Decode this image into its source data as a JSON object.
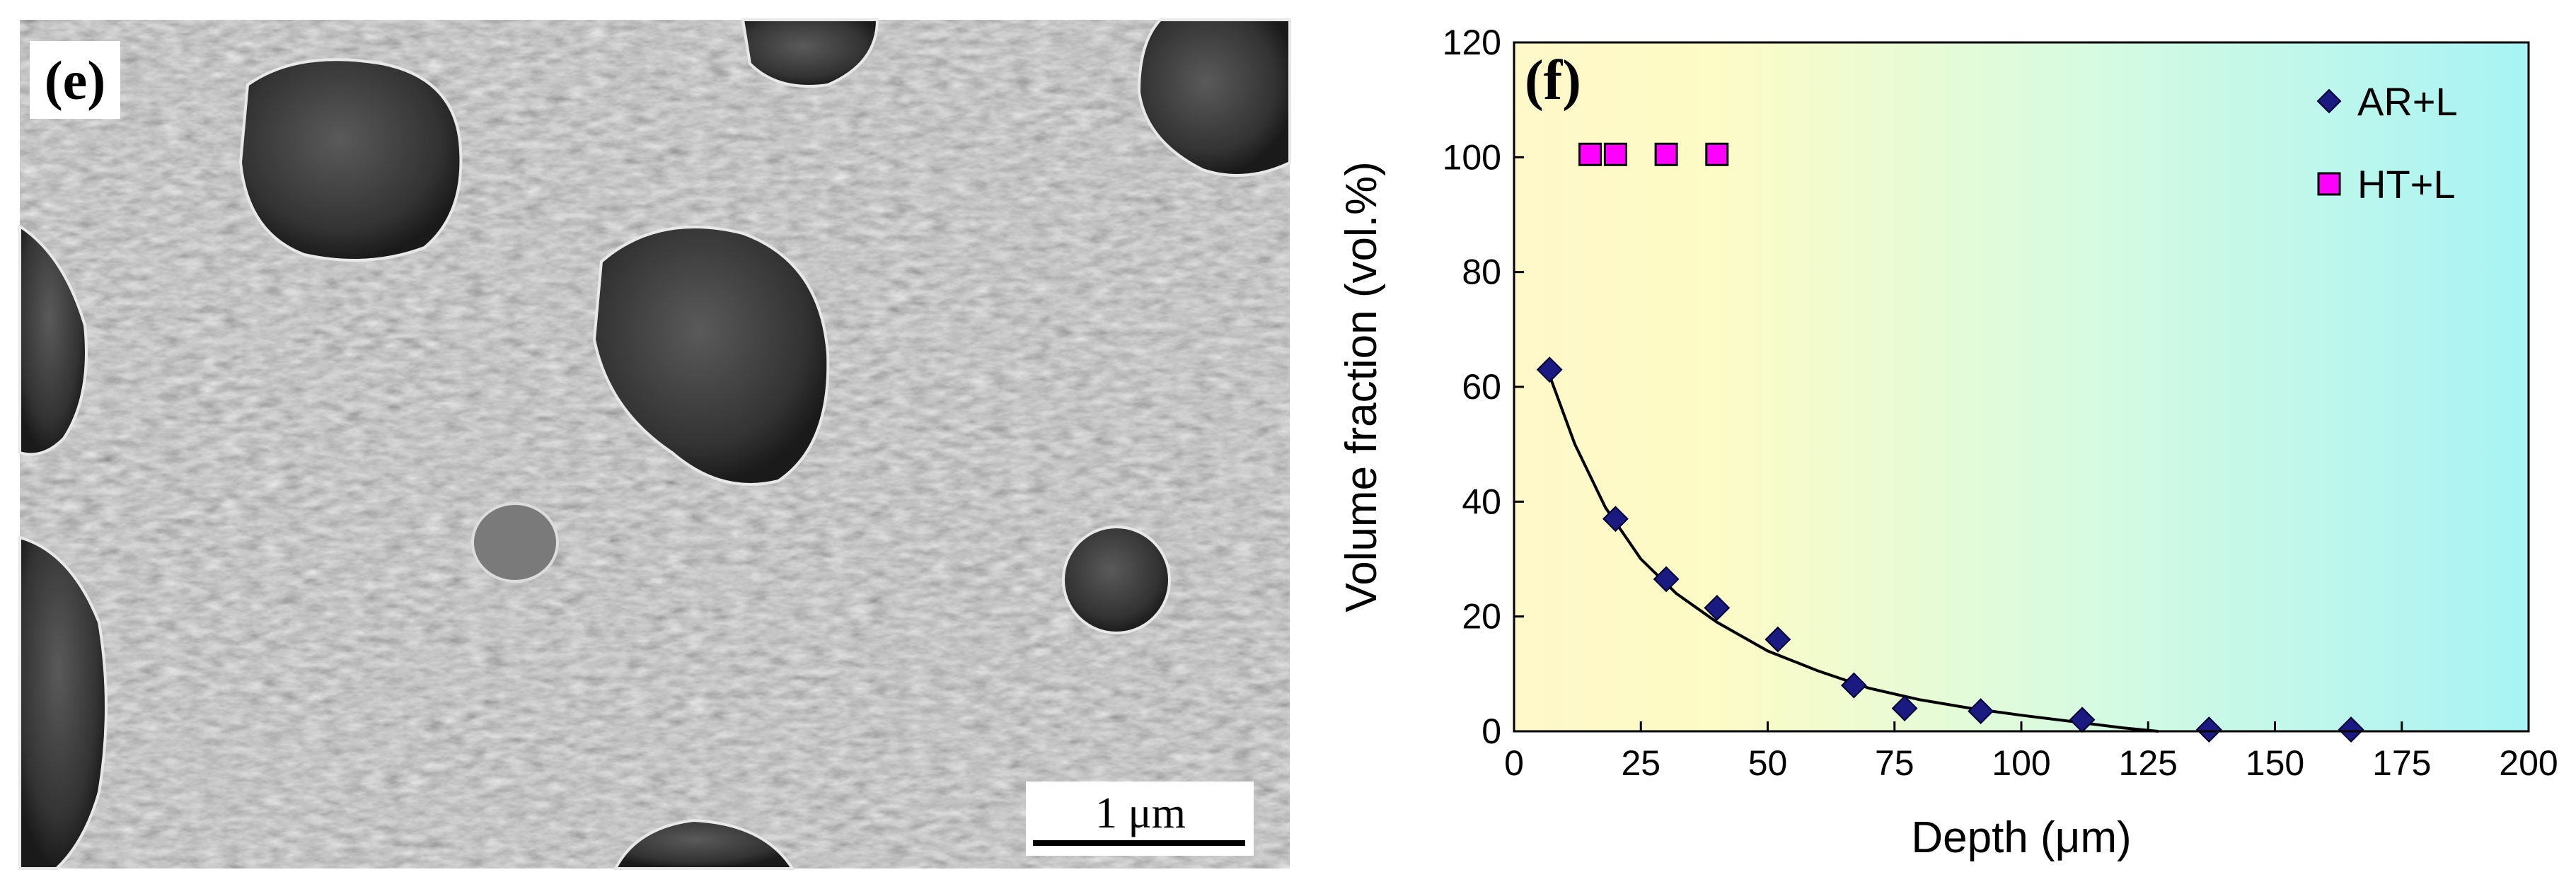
{
  "micrograph": {
    "panel_label": "(e)",
    "scale_bar_label": "1 μm"
  },
  "chart_data": {
    "type": "scatter",
    "panel_label": "(f)",
    "xlabel": "Depth (μm)",
    "ylabel": "Volume fraction (vol.%)",
    "xlim": [
      0,
      200
    ],
    "ylim": [
      0,
      120
    ],
    "xticks": [
      0,
      25,
      50,
      75,
      100,
      125,
      150,
      175,
      200
    ],
    "yticks": [
      0,
      20,
      40,
      60,
      80,
      100,
      120
    ],
    "legend_position": "top-right",
    "background": "gradient yellow-to-cyan",
    "series": [
      {
        "name": "AR+L",
        "marker": "diamond",
        "color": "#1a1a80",
        "x": [
          7,
          20,
          30,
          40,
          52,
          67,
          77,
          92,
          112,
          137,
          165
        ],
        "y": [
          63,
          37,
          26.5,
          21.5,
          16,
          8,
          4,
          3.5,
          2,
          0.3,
          0.3
        ]
      },
      {
        "name": "HT+L",
        "marker": "square",
        "color": "#ff00ff",
        "x": [
          15,
          20,
          30,
          40
        ],
        "y": [
          100.5,
          100.5,
          100.5,
          100.5
        ]
      }
    ],
    "fit_curve": {
      "color": "#000000",
      "x": [
        7,
        12,
        18,
        25,
        32,
        40,
        50,
        60,
        70,
        80,
        90,
        100,
        110,
        120,
        127
      ],
      "y": [
        62,
        50,
        39,
        30,
        24,
        19,
        14,
        10.5,
        7.5,
        5.5,
        4,
        2.8,
        1.7,
        0.6,
        0
      ]
    }
  }
}
